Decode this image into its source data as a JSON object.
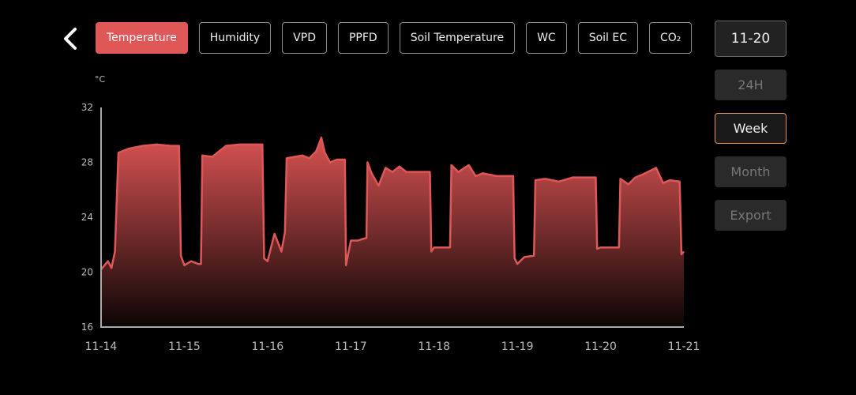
{
  "tabs": [
    "Temperature",
    "Humidity",
    "VPD",
    "PPFD",
    "Soil Temperature",
    "WC",
    "Soil EC",
    "CO₂"
  ],
  "active_tab": 0,
  "date_button": "11-20",
  "range_buttons": [
    "24H",
    "Week",
    "Month",
    "Export"
  ],
  "active_range": 1,
  "chart_data": {
    "type": "area",
    "y_unit": "°C",
    "color": "#e05757",
    "grid": false,
    "x": [
      0,
      2,
      3,
      4,
      5,
      8,
      12,
      16,
      20,
      22.5,
      23,
      24,
      26,
      28,
      28.8,
      29.2,
      32,
      36,
      40,
      44,
      46.5,
      47,
      48,
      50,
      52,
      53,
      53.5,
      58,
      60,
      62,
      63.5,
      64.5,
      66,
      68,
      70.3,
      70.6,
      72,
      74,
      76.5,
      76.8,
      78,
      80,
      82,
      84,
      86,
      88,
      94.8,
      95.2,
      96,
      98,
      100.6,
      101,
      103,
      106,
      108,
      110,
      114,
      118.8,
      119.2,
      120,
      122,
      124.8,
      125.2,
      128,
      132,
      136,
      142.6,
      143,
      144,
      147,
      149.3,
      149.7,
      152,
      154,
      156,
      160,
      162,
      164,
      166.8,
      167.3,
      168
    ],
    "values": [
      20.2,
      20.8,
      20.3,
      21.5,
      28.7,
      29.0,
      29.2,
      29.3,
      29.2,
      29.2,
      21.2,
      20.5,
      20.8,
      20.6,
      20.6,
      28.5,
      28.4,
      29.2,
      29.3,
      29.3,
      29.3,
      21.0,
      20.8,
      22.8,
      21.5,
      22.9,
      28.3,
      28.5,
      28.3,
      28.8,
      29.8,
      28.7,
      28.0,
      28.2,
      28.2,
      20.5,
      22.3,
      22.3,
      22.5,
      28.0,
      27.2,
      26.3,
      27.6,
      27.3,
      27.7,
      27.3,
      27.3,
      21.5,
      21.8,
      21.8,
      21.8,
      27.8,
      27.3,
      27.8,
      27.0,
      27.2,
      27.0,
      27.0,
      21.0,
      20.6,
      21.1,
      21.2,
      26.7,
      26.8,
      26.6,
      26.9,
      26.9,
      21.7,
      21.8,
      21.8,
      21.8,
      26.8,
      26.4,
      26.9,
      27.1,
      27.6,
      26.5,
      26.7,
      26.6,
      21.3,
      21.5
    ],
    "xlim": [
      0,
      168
    ],
    "xticks": [
      {
        "value": 0,
        "label": "11-14"
      },
      {
        "value": 24,
        "label": "11-15"
      },
      {
        "value": 48,
        "label": "11-16"
      },
      {
        "value": 72,
        "label": "11-17"
      },
      {
        "value": 96,
        "label": "11-18"
      },
      {
        "value": 120,
        "label": "11-19"
      },
      {
        "value": 144,
        "label": "11-20"
      },
      {
        "value": 168,
        "label": "11-21"
      }
    ],
    "ylim": [
      16,
      32
    ],
    "yticks": [
      16,
      20,
      24,
      28,
      32
    ]
  }
}
